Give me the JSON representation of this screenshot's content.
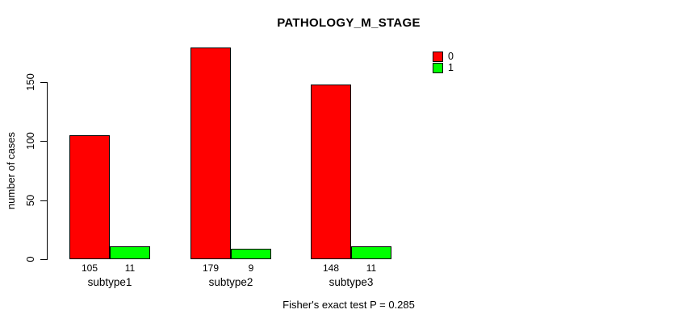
{
  "title": "PATHOLOGY_M_STAGE",
  "y_axis": {
    "label": "number of cases",
    "tick_labels": [
      "0",
      "50",
      "100",
      "150"
    ]
  },
  "legend": {
    "items": [
      {
        "label": "0",
        "color": "#FF0000"
      },
      {
        "label": "1",
        "color": "#00FF00"
      }
    ]
  },
  "footer": "Fisher's exact test P = 0.285",
  "chart_data": {
    "type": "bar",
    "title": "PATHOLOGY_M_STAGE",
    "xlabel": "",
    "ylabel": "number of cases",
    "categories": [
      "subtype1",
      "subtype2",
      "subtype3"
    ],
    "series": [
      {
        "name": "0",
        "color": "#FF0000",
        "values": [
          105,
          179,
          148
        ]
      },
      {
        "name": "1",
        "color": "#00FF00",
        "values": [
          11,
          9,
          11
        ]
      }
    ],
    "value_labels_shown": true,
    "yticks": [
      0,
      50,
      100,
      150
    ],
    "ylim": [
      0,
      186
    ],
    "grid": false,
    "legend_position": "top-right",
    "annotation": "Fisher's exact test P = 0.285"
  }
}
